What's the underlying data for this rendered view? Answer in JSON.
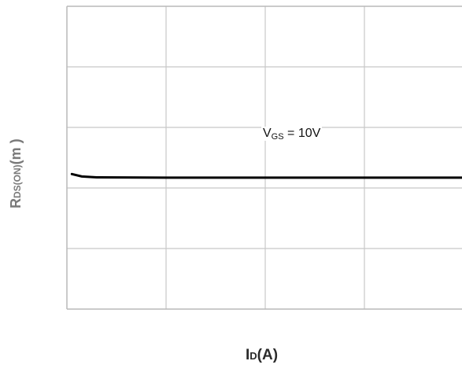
{
  "chart_data": {
    "type": "line",
    "xlabel": "I",
    "xlabel_sub": "D",
    "xlabel_unit": "(A)",
    "ylabel": "R",
    "ylabel_sub": "DS(ON)",
    "ylabel_unit": "(m   )",
    "annotation": {
      "prefix": "V",
      "sub": "GS",
      "suffix": " = 10V"
    },
    "grid": true,
    "grid_columns": 4,
    "grid_rows": 5,
    "xlim": [
      0,
      4
    ],
    "ylim": [
      0,
      5
    ],
    "series": [
      {
        "values": [
          {
            "x": 0.05,
            "y": 2.23
          },
          {
            "x": 0.15,
            "y": 2.19
          },
          {
            "x": 0.3,
            "y": 2.175
          },
          {
            "x": 1.0,
            "y": 2.17
          },
          {
            "x": 2.0,
            "y": 2.17
          },
          {
            "x": 3.0,
            "y": 2.17
          },
          {
            "x": 4.0,
            "y": 2.17
          }
        ],
        "color": "#000000"
      }
    ],
    "colors": {
      "grid": "#c8c8c8",
      "axis": "#b9b9b9",
      "line": "#000000"
    }
  }
}
